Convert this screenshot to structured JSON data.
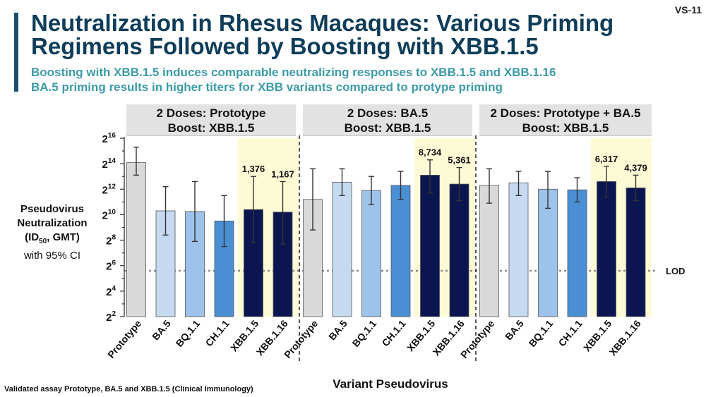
{
  "slide_id": "VS-11",
  "title_lines": [
    "Neutralization in Rhesus Macaques: Various Priming",
    "Regimens Followed by Boosting with XBB.1.5"
  ],
  "subtitles": [
    "Boosting with XBB.1.5 induces comparable neutralizing responses to XBB.1.5 and XBB.1.16",
    "BA.5 priming results in higher titers for XBB variants compared to protype priming"
  ],
  "footnote": "Validated assay Prototype, BA.5 and XBB.1.5 (Clinical Immunology)",
  "colors": {
    "title": "#0e3d5a",
    "subtitle": "#3c9aa7",
    "Prototype": "#d9d9d9",
    "BA.5": "#c5daf1",
    "BQ.1.1": "#9dc3ea",
    "CH.1.1": "#4a8fd3",
    "XBB.1.5": "#0b1650",
    "XBB.1.16": "#0b1650",
    "highlight": "#fdfbd6"
  },
  "chart_data": {
    "type": "bar",
    "x_label": "Variant Pseudovirus",
    "y_label_lines": [
      "Pseudovirus",
      "Neutralization"
    ],
    "y_label_units": "(ID50, GMT)",
    "y_label_ci": "with 95% CI",
    "y_scale": "log2",
    "y_ticks_exp": [
      2,
      4,
      6,
      8,
      10,
      12,
      14,
      16
    ],
    "y_range_exp": [
      2,
      16
    ],
    "lod_exp": 5.6,
    "lod_label": "LOD",
    "highlighted_categories": [
      "XBB.1.5",
      "XBB.1.16"
    ],
    "groups": [
      {
        "header_lines": [
          "2 Doses: Prototype",
          "Boost: XBB.1.5"
        ],
        "bars": [
          {
            "category": "Prototype",
            "exp": 14.1,
            "ci": [
              13.1,
              15.3
            ]
          },
          {
            "category": "BA.5",
            "exp": 10.3,
            "ci": [
              8.4,
              12.2
            ]
          },
          {
            "category": "BQ.1.1",
            "exp": 10.25,
            "ci": [
              7.9,
              12.6
            ]
          },
          {
            "category": "CH.1.1",
            "exp": 9.5,
            "ci": [
              7.5,
              11.5
            ]
          },
          {
            "category": "XBB.1.5",
            "exp": 10.4,
            "ci": [
              7.8,
              13.0
            ],
            "label": "1,376"
          },
          {
            "category": "XBB.1.16",
            "exp": 10.2,
            "ci": [
              7.7,
              12.6
            ],
            "label": "1,167"
          }
        ]
      },
      {
        "header_lines": [
          "2 Doses: BA.5",
          "Boost: XBB.1.5"
        ],
        "bars": [
          {
            "category": "Prototype",
            "exp": 11.2,
            "ci": [
              8.8,
              13.6
            ]
          },
          {
            "category": "BA.5",
            "exp": 12.55,
            "ci": [
              11.5,
              13.6
            ]
          },
          {
            "category": "BQ.1.1",
            "exp": 11.9,
            "ci": [
              10.8,
              13.0
            ]
          },
          {
            "category": "CH.1.1",
            "exp": 12.3,
            "ci": [
              11.2,
              13.4
            ]
          },
          {
            "category": "XBB.1.5",
            "exp": 13.1,
            "ci": [
              11.7,
              14.3
            ],
            "label": "8,734"
          },
          {
            "category": "XBB.1.16",
            "exp": 12.4,
            "ci": [
              11.1,
              13.7
            ],
            "label": "5,361"
          }
        ]
      },
      {
        "header_lines": [
          "2 Doses: Prototype + BA.5",
          "Boost: XBB.1.5"
        ],
        "bars": [
          {
            "category": "Prototype",
            "exp": 12.3,
            "ci": [
              10.9,
              13.6
            ]
          },
          {
            "category": "BA.5",
            "exp": 12.5,
            "ci": [
              11.5,
              13.4
            ]
          },
          {
            "category": "BQ.1.1",
            "exp": 12.0,
            "ci": [
              10.5,
              13.4
            ]
          },
          {
            "category": "CH.1.1",
            "exp": 11.95,
            "ci": [
              11.0,
              12.9
            ]
          },
          {
            "category": "XBB.1.5",
            "exp": 12.6,
            "ci": [
              11.4,
              13.8
            ],
            "label": "6,317"
          },
          {
            "category": "XBB.1.16",
            "exp": 12.1,
            "ci": [
              11.1,
              13.1
            ],
            "label": "4,379"
          }
        ]
      }
    ]
  }
}
